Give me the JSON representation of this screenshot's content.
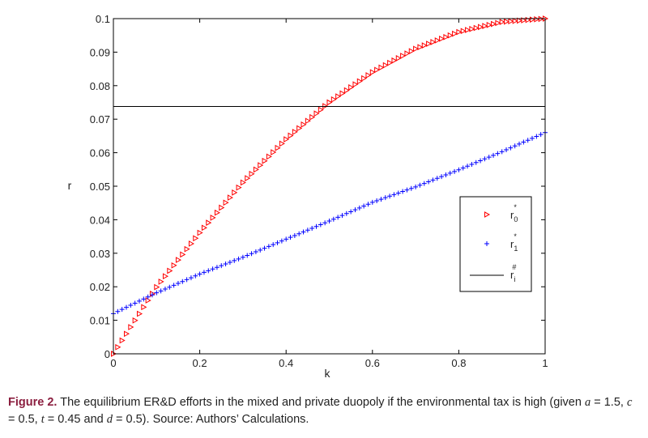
{
  "chart_data": {
    "type": "scatter",
    "title": "",
    "xlabel": "k",
    "ylabel": "r",
    "xlim": [
      0,
      1
    ],
    "ylim": [
      0,
      0.1
    ],
    "grid": false,
    "legend_placement": "right",
    "x_ticks": [
      "0",
      "0.2",
      "0.4",
      "0.6",
      "0.8",
      "1"
    ],
    "y_ticks": [
      "0",
      "0.01",
      "0.02",
      "0.03",
      "0.04",
      "0.05",
      "0.06",
      "0.07",
      "0.08",
      "0.09",
      "0.1"
    ],
    "series": [
      {
        "name": "r0*",
        "marker": "triangle-right",
        "color": "#ff0000",
        "x": [
          0,
          0.1,
          0.2,
          0.3,
          0.4,
          0.5,
          0.6,
          0.7,
          0.8,
          0.9,
          1.0
        ],
        "y": [
          0,
          0.0199,
          0.0361,
          0.0511,
          0.064,
          0.075,
          0.084,
          0.091,
          0.096,
          0.099,
          0.1
        ]
      },
      {
        "name": "r1*",
        "marker": "plus",
        "color": "#0000ff",
        "x": [
          0,
          0.1,
          0.2,
          0.3,
          0.4,
          0.5,
          0.6,
          0.7,
          0.8,
          0.9,
          1.0
        ],
        "y": [
          0.012,
          0.0182,
          0.0238,
          0.0288,
          0.0342,
          0.0396,
          0.0452,
          0.0498,
          0.0549,
          0.0603,
          0.066
        ]
      },
      {
        "name": "ri#",
        "marker": "line",
        "color": "#000000",
        "x": [
          0,
          1
        ],
        "y": [
          0.0738,
          0.0738
        ]
      }
    ]
  },
  "legend": {
    "r0": {
      "base": "r",
      "sub": "0",
      "sup": "*"
    },
    "r1": {
      "base": "r",
      "sub": "1",
      "sup": "*"
    },
    "ri": {
      "base": "r",
      "sub": "i",
      "sup": "#"
    }
  },
  "caption": {
    "figure_label": "Figure 2.",
    "text_1": "The equilibrium ER&D efforts in the mixed and private duopoly if the environmental tax is high (given ",
    "a": "a",
    "a_val": " = 1.5, ",
    "c": "c",
    "c_val": " = 0.5, ",
    "t": "t",
    "t_val": " = 0.45 and ",
    "d": "d",
    "d_val": " = 0.5). Source: Authors’ Calculations."
  }
}
